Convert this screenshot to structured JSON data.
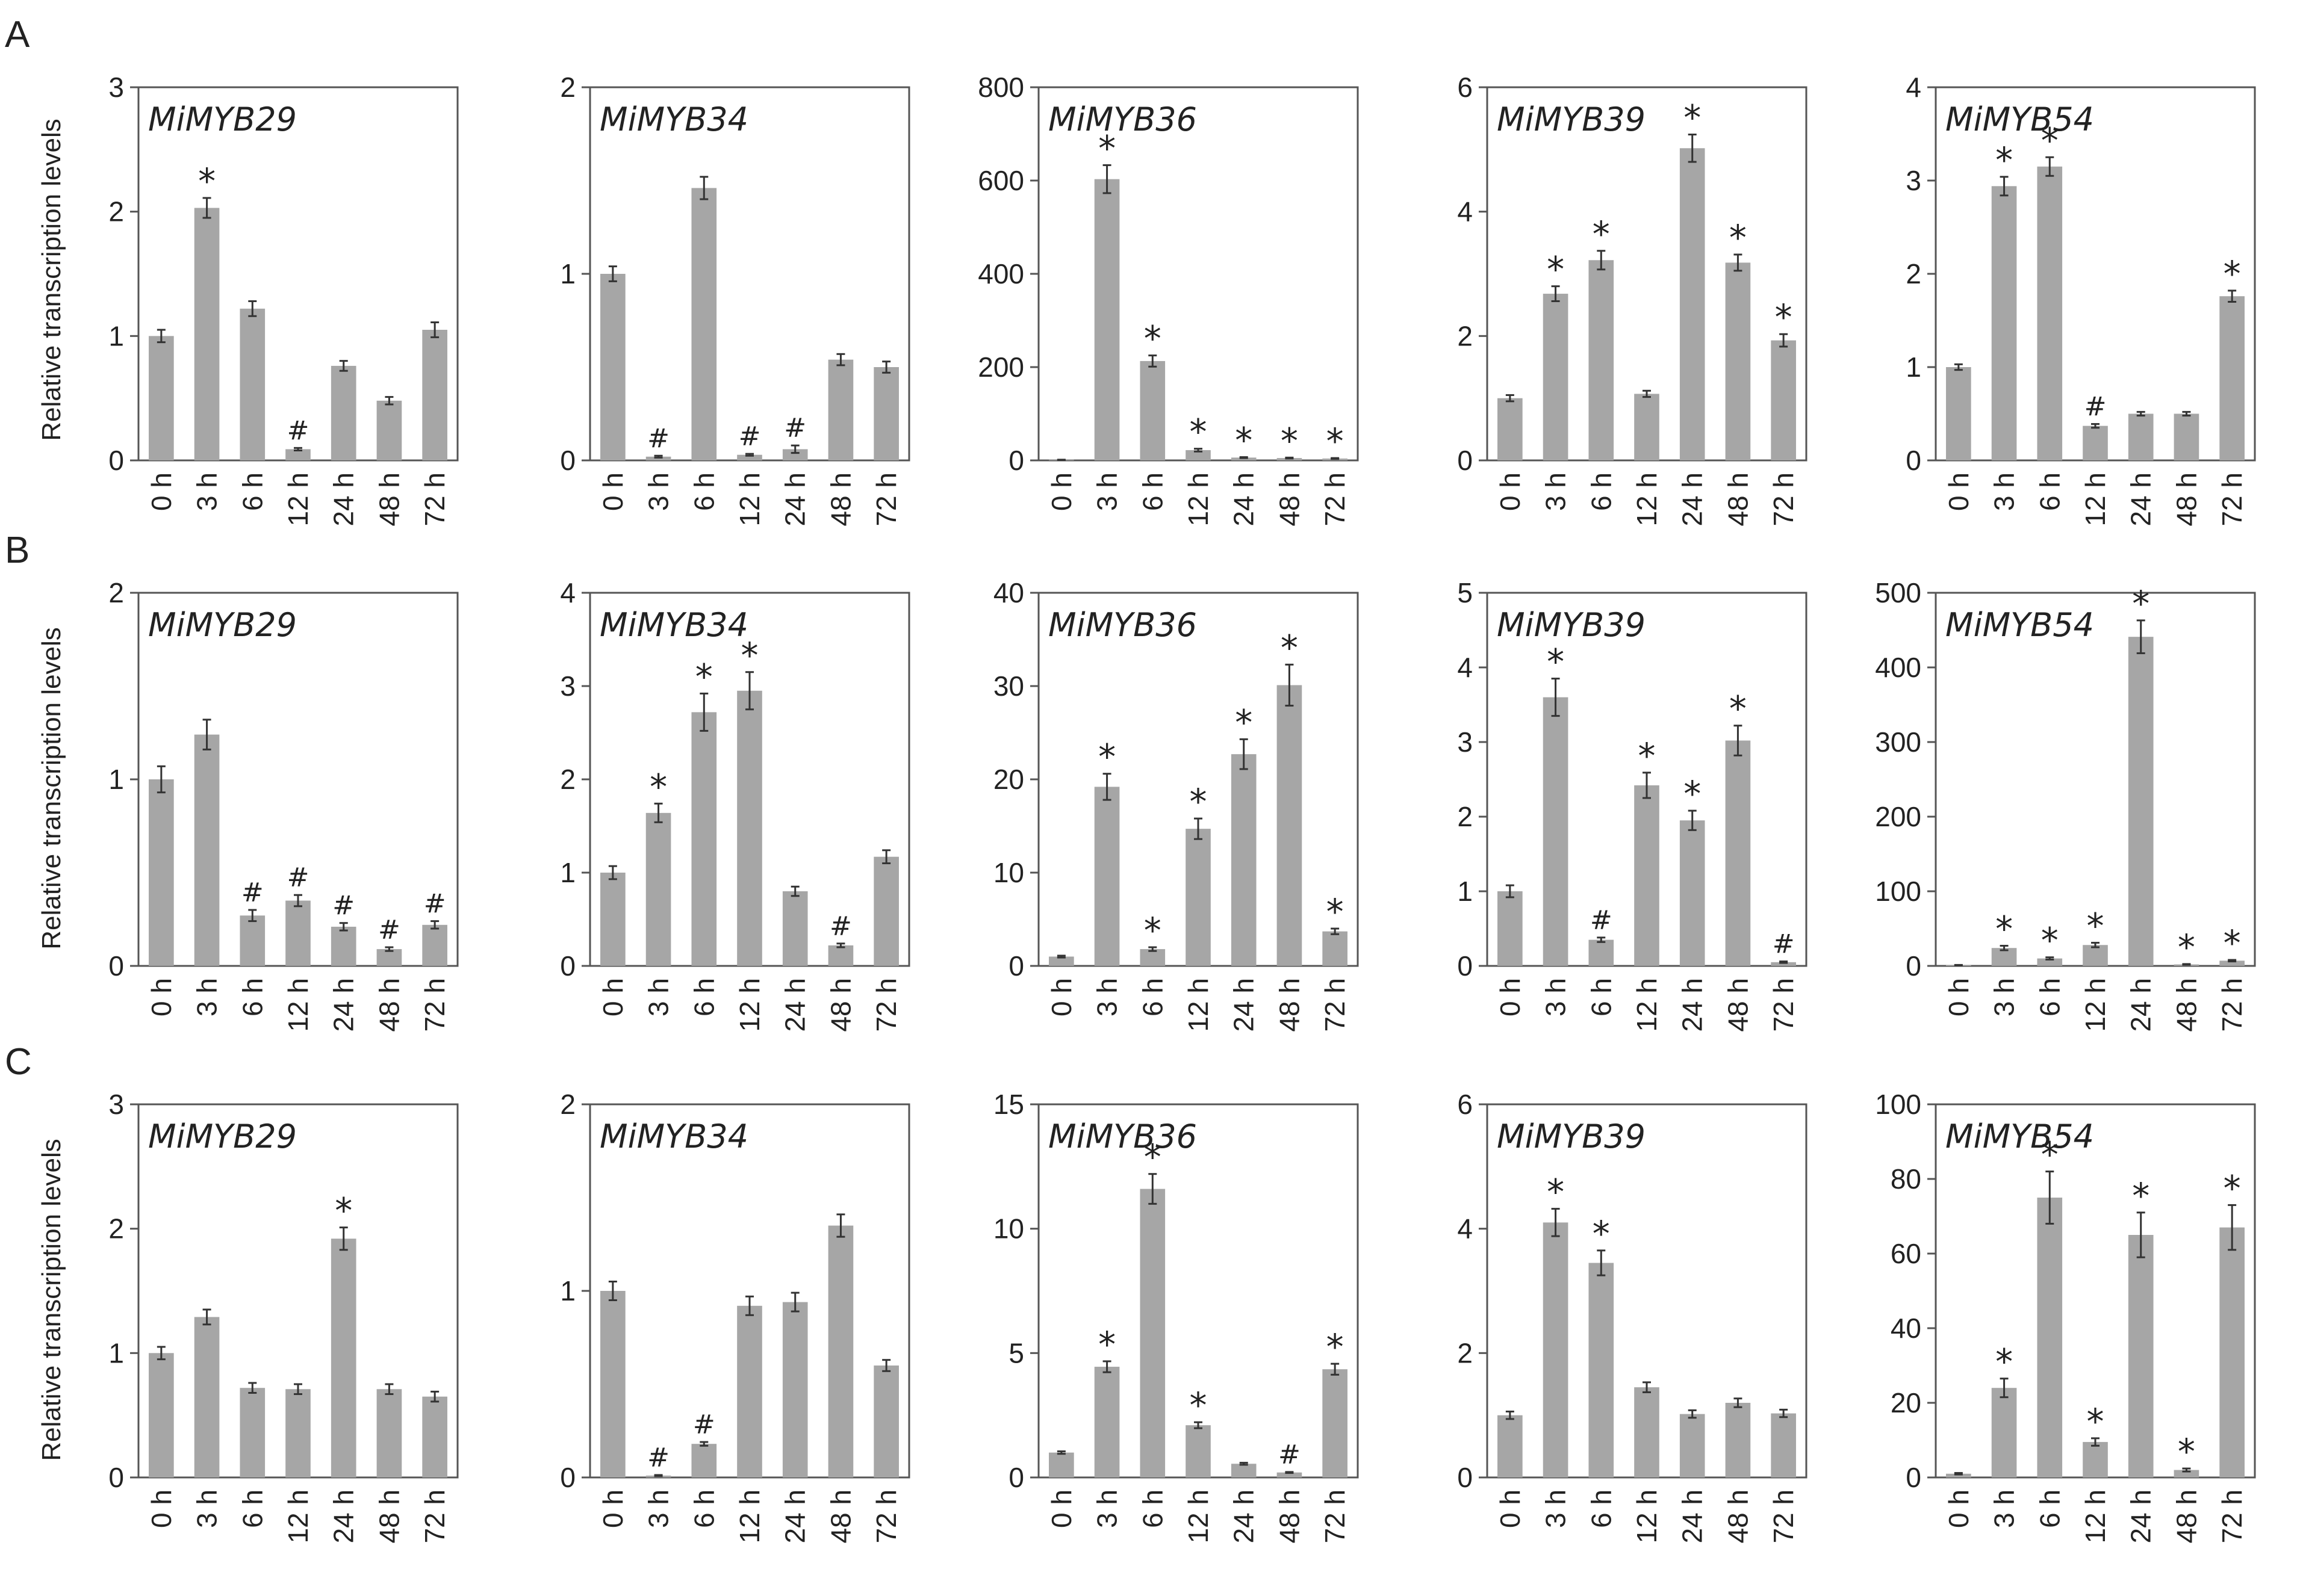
{
  "figure": {
    "rows": [
      {
        "letter": "A",
        "y_label": "Relative transcription  levels"
      },
      {
        "letter": "B",
        "y_label": "Relative transcription  levels"
      },
      {
        "letter": "C",
        "y_label": "Relative transcription  levels"
      }
    ]
  },
  "colors": {
    "bar": "#a6a6a6",
    "axis": "#555555",
    "text": "#222222"
  },
  "chart_data": [
    {
      "row": "A",
      "type": "bar",
      "title": "MiMYB29",
      "categories": [
        "0 h",
        "3 h",
        "6 h",
        "12 h",
        "24 h",
        "48 h",
        "72 h"
      ],
      "values": [
        1.0,
        2.03,
        1.22,
        0.09,
        0.76,
        0.48,
        1.05
      ],
      "errors": [
        0.05,
        0.08,
        0.06,
        0.01,
        0.04,
        0.03,
        0.06
      ],
      "marks": [
        "",
        "*",
        "",
        "#",
        "",
        "",
        ""
      ],
      "ylim": [
        0,
        3
      ],
      "yticks": [
        "0",
        "1",
        "2",
        "3"
      ],
      "xlabel": "",
      "ylabel": "Relative transcription  levels"
    },
    {
      "row": "A",
      "type": "bar",
      "title": "MiMYB34",
      "categories": [
        "0 h",
        "3 h",
        "6 h",
        "12 h",
        "24 h",
        "48 h",
        "72 h"
      ],
      "values": [
        1.0,
        0.02,
        1.46,
        0.03,
        0.06,
        0.54,
        0.5
      ],
      "errors": [
        0.04,
        0.005,
        0.06,
        0.005,
        0.02,
        0.03,
        0.03
      ],
      "marks": [
        "",
        "#",
        "",
        "#",
        "#",
        "",
        ""
      ],
      "ylim": [
        0,
        2
      ],
      "yticks": [
        "0",
        "1",
        "2"
      ],
      "xlabel": "",
      "ylabel": ""
    },
    {
      "row": "A",
      "type": "bar",
      "title": "MiMYB36",
      "categories": [
        "0 h",
        "3 h",
        "6 h",
        "12 h",
        "24 h",
        "48 h",
        "72 h"
      ],
      "values": [
        1,
        603,
        213,
        22,
        6,
        5,
        4
      ],
      "errors": [
        0.5,
        30,
        12,
        3,
        1,
        1,
        1
      ],
      "marks": [
        "",
        "*",
        "*",
        "*",
        "*",
        "*",
        "*"
      ],
      "ylim": [
        0,
        800
      ],
      "yticks": [
        "0",
        "200",
        "400",
        "600",
        "800"
      ],
      "xlabel": "",
      "ylabel": ""
    },
    {
      "row": "A",
      "type": "bar",
      "title": "MiMYB39",
      "categories": [
        "0 h",
        "3 h",
        "6 h",
        "12 h",
        "24 h",
        "48 h",
        "72 h"
      ],
      "values": [
        1.0,
        2.68,
        3.22,
        1.07,
        5.02,
        3.18,
        1.93
      ],
      "errors": [
        0.05,
        0.12,
        0.15,
        0.05,
        0.22,
        0.13,
        0.1
      ],
      "marks": [
        "",
        "*",
        "*",
        "",
        "*",
        "*",
        "*"
      ],
      "ylim": [
        0,
        6
      ],
      "yticks": [
        "0",
        "2",
        "4",
        "6"
      ],
      "xlabel": "",
      "ylabel": ""
    },
    {
      "row": "A",
      "type": "bar",
      "title": "MiMYB54",
      "categories": [
        "0 h",
        "3 h",
        "6 h",
        "12 h",
        "24 h",
        "48 h",
        "72 h"
      ],
      "values": [
        1.0,
        2.94,
        3.15,
        0.37,
        0.5,
        0.5,
        1.76
      ],
      "errors": [
        0.03,
        0.1,
        0.1,
        0.02,
        0.02,
        0.02,
        0.06
      ],
      "marks": [
        "",
        "*",
        "*",
        "#",
        "",
        "",
        "*"
      ],
      "ylim": [
        0,
        4
      ],
      "yticks": [
        "0",
        "1",
        "2",
        "3",
        "4"
      ],
      "xlabel": "",
      "ylabel": ""
    },
    {
      "row": "B",
      "type": "bar",
      "title": "MiMYB29",
      "categories": [
        "0 h",
        "3 h",
        "6 h",
        "12 h",
        "24 h",
        "48 h",
        "72 h"
      ],
      "values": [
        1.0,
        1.24,
        0.27,
        0.35,
        0.21,
        0.09,
        0.22
      ],
      "errors": [
        0.07,
        0.08,
        0.03,
        0.03,
        0.02,
        0.01,
        0.02
      ],
      "marks": [
        "",
        "",
        "#",
        "#",
        "#",
        "#",
        "#"
      ],
      "ylim": [
        0,
        2
      ],
      "yticks": [
        "0",
        "1",
        "2"
      ],
      "xlabel": "",
      "ylabel": "Relative transcription  levels"
    },
    {
      "row": "B",
      "type": "bar",
      "title": "MiMYB34",
      "categories": [
        "0 h",
        "3 h",
        "6 h",
        "12 h",
        "24 h",
        "48 h",
        "72 h"
      ],
      "values": [
        1.0,
        1.64,
        2.72,
        2.95,
        0.8,
        0.22,
        1.17
      ],
      "errors": [
        0.07,
        0.1,
        0.2,
        0.2,
        0.05,
        0.02,
        0.07
      ],
      "marks": [
        "",
        "*",
        "*",
        "*",
        "",
        "#",
        ""
      ],
      "ylim": [
        0,
        4
      ],
      "yticks": [
        "0",
        "1",
        "2",
        "3",
        "4"
      ],
      "xlabel": "",
      "ylabel": ""
    },
    {
      "row": "B",
      "type": "bar",
      "title": "MiMYB36",
      "categories": [
        "0 h",
        "3 h",
        "6 h",
        "12 h",
        "24 h",
        "48 h",
        "72 h"
      ],
      "values": [
        1.0,
        19.2,
        1.8,
        14.7,
        22.7,
        30.1,
        3.7
      ],
      "errors": [
        0.1,
        1.4,
        0.2,
        1.1,
        1.6,
        2.2,
        0.3
      ],
      "marks": [
        "",
        "*",
        "*",
        "*",
        "*",
        "*",
        "*"
      ],
      "ylim": [
        0,
        40
      ],
      "yticks": [
        "0",
        "10",
        "20",
        "30",
        "40"
      ],
      "xlabel": "",
      "ylabel": ""
    },
    {
      "row": "B",
      "type": "bar",
      "title": "MiMYB39",
      "categories": [
        "0 h",
        "3 h",
        "6 h",
        "12 h",
        "24 h",
        "48 h",
        "72 h"
      ],
      "values": [
        1.0,
        3.6,
        0.35,
        2.42,
        1.95,
        3.02,
        0.05
      ],
      "errors": [
        0.08,
        0.25,
        0.03,
        0.17,
        0.13,
        0.2,
        0.01
      ],
      "marks": [
        "",
        "*",
        "#",
        "*",
        "*",
        "*",
        "#"
      ],
      "ylim": [
        0,
        5
      ],
      "yticks": [
        "0",
        "1",
        "2",
        "3",
        "4",
        "5"
      ],
      "xlabel": "",
      "ylabel": ""
    },
    {
      "row": "B",
      "type": "bar",
      "title": "MiMYB54",
      "categories": [
        "0 h",
        "3 h",
        "6 h",
        "12 h",
        "24 h",
        "48 h",
        "72 h"
      ],
      "values": [
        1,
        24,
        10,
        28,
        441,
        2,
        7
      ],
      "errors": [
        0.3,
        3,
        1.5,
        3,
        22,
        0.5,
        1
      ],
      "marks": [
        "",
        "*",
        "*",
        "*",
        "*",
        "*",
        "*"
      ],
      "ylim": [
        0,
        500
      ],
      "yticks": [
        "0",
        "100",
        "200",
        "300",
        "400",
        "500"
      ],
      "xlabel": "",
      "ylabel": ""
    },
    {
      "row": "C",
      "type": "bar",
      "title": "MiMYB29",
      "categories": [
        "0 h",
        "3 h",
        "6 h",
        "12 h",
        "24 h",
        "48 h",
        "72 h"
      ],
      "values": [
        1.0,
        1.29,
        0.72,
        0.71,
        1.92,
        0.71,
        0.65
      ],
      "errors": [
        0.05,
        0.06,
        0.04,
        0.04,
        0.09,
        0.04,
        0.04
      ],
      "marks": [
        "",
        "",
        "",
        "",
        "*",
        "",
        ""
      ],
      "ylim": [
        0,
        3
      ],
      "yticks": [
        "0",
        "1",
        "2",
        "3"
      ],
      "xlabel": "",
      "ylabel": "Relative transcription  levels"
    },
    {
      "row": "C",
      "type": "bar",
      "title": "MiMYB34",
      "categories": [
        "0 h",
        "3 h",
        "6 h",
        "12 h",
        "24 h",
        "48 h",
        "72 h"
      ],
      "values": [
        1.0,
        0.01,
        0.18,
        0.92,
        0.94,
        1.35,
        0.6
      ],
      "errors": [
        0.05,
        0.003,
        0.01,
        0.05,
        0.05,
        0.06,
        0.03
      ],
      "marks": [
        "",
        "#",
        "#",
        "",
        "",
        "",
        ""
      ],
      "ylim": [
        0,
        2
      ],
      "yticks": [
        "0",
        "1",
        "2"
      ],
      "xlabel": "",
      "ylabel": ""
    },
    {
      "row": "C",
      "type": "bar",
      "title": "MiMYB36",
      "categories": [
        "0 h",
        "3 h",
        "6 h",
        "12 h",
        "24 h",
        "48 h",
        "72 h"
      ],
      "values": [
        1.0,
        4.45,
        11.6,
        2.1,
        0.55,
        0.2,
        4.35
      ],
      "errors": [
        0.05,
        0.22,
        0.6,
        0.12,
        0.04,
        0.02,
        0.22
      ],
      "marks": [
        "",
        "*",
        "*",
        "*",
        "",
        "#",
        "*"
      ],
      "ylim": [
        0,
        15
      ],
      "yticks": [
        "0",
        "5",
        "10",
        "15"
      ],
      "xlabel": "",
      "ylabel": ""
    },
    {
      "row": "C",
      "type": "bar",
      "title": "MiMYB39",
      "categories": [
        "0 h",
        "3 h",
        "6 h",
        "12 h",
        "24 h",
        "48 h",
        "72 h"
      ],
      "values": [
        1.0,
        4.1,
        3.45,
        1.45,
        1.02,
        1.2,
        1.03
      ],
      "errors": [
        0.06,
        0.22,
        0.2,
        0.08,
        0.06,
        0.07,
        0.06
      ],
      "marks": [
        "",
        "*",
        "*",
        "",
        "",
        "",
        ""
      ],
      "ylim": [
        0,
        6
      ],
      "yticks": [
        "0",
        "2",
        "4",
        "6"
      ],
      "xlabel": "",
      "ylabel": ""
    },
    {
      "row": "C",
      "type": "bar",
      "title": "MiMYB54",
      "categories": [
        "0 h",
        "3 h",
        "6 h",
        "12 h",
        "24 h",
        "48 h",
        "72 h"
      ],
      "values": [
        1,
        24,
        75,
        9.5,
        65,
        2,
        67
      ],
      "errors": [
        0.2,
        2.5,
        7,
        1,
        6,
        0.4,
        6
      ],
      "marks": [
        "",
        "*",
        "*",
        "*",
        "*",
        "*",
        "*"
      ],
      "ylim": [
        0,
        100
      ],
      "yticks": [
        "0",
        "20",
        "40",
        "60",
        "80",
        "100"
      ],
      "xlabel": "",
      "ylabel": ""
    }
  ]
}
